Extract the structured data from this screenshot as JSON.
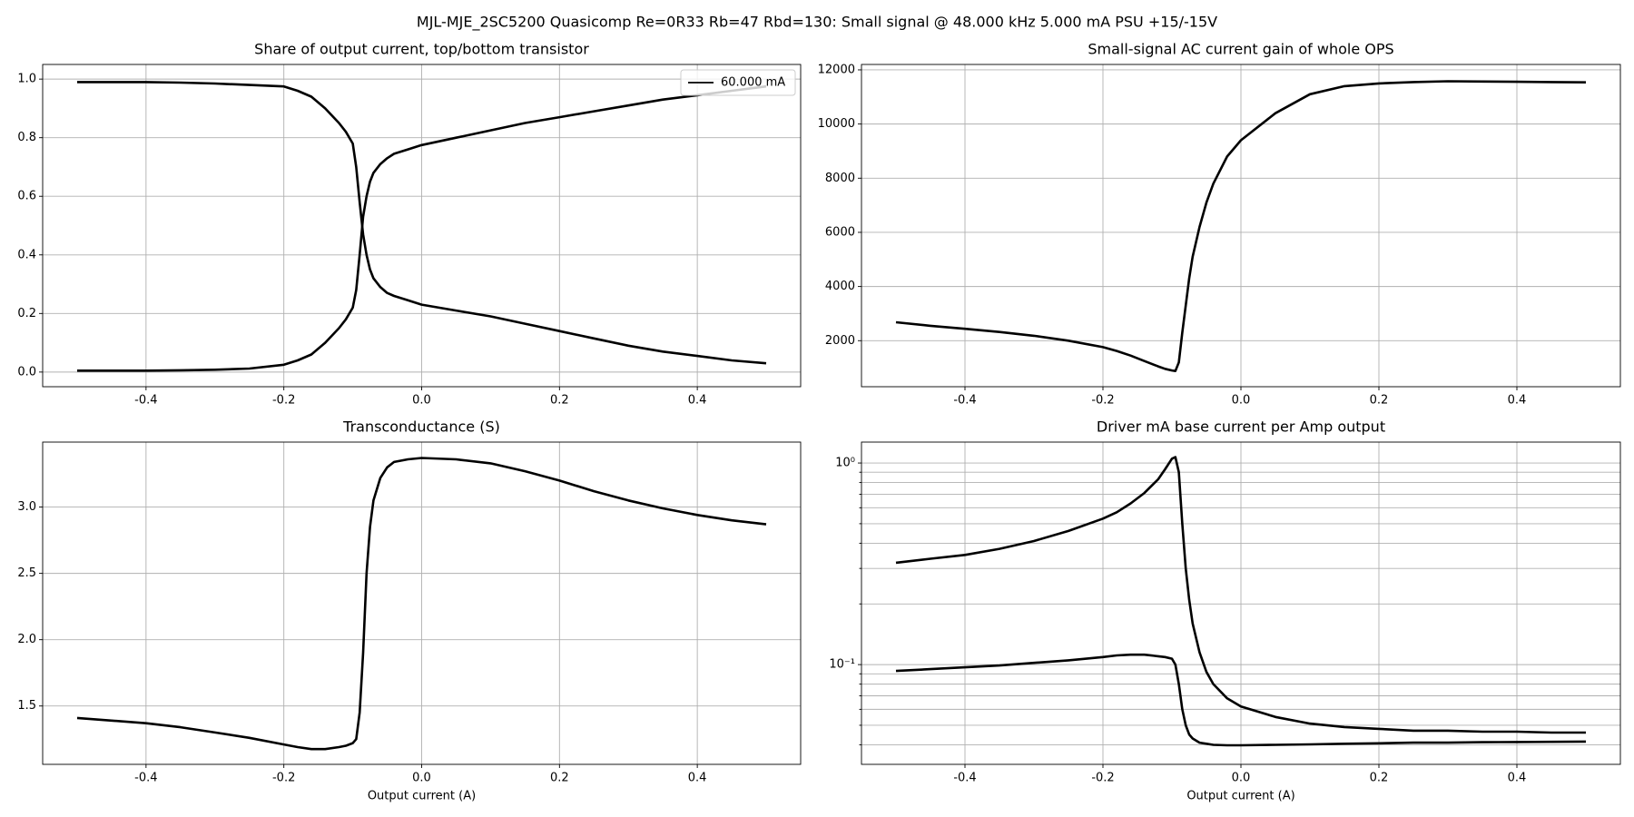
{
  "title": "MJL-MJE_2SC5200 Quasicomp Re=0R33 Rb=47 Rbd=130: Small signal @ 48.000 kHz 5.000 mA PSU +15/-15V",
  "chart_data": [
    {
      "type": "line",
      "title": "Share of output current, top/bottom transistor",
      "x": [
        -0.5,
        -0.45,
        -0.4,
        -0.35,
        -0.3,
        -0.25,
        -0.2,
        -0.18,
        -0.16,
        -0.14,
        -0.12,
        -0.11,
        -0.1,
        -0.095,
        -0.09,
        -0.085,
        -0.08,
        -0.075,
        -0.07,
        -0.06,
        -0.05,
        -0.04,
        -0.02,
        0,
        0.05,
        0.1,
        0.15,
        0.2,
        0.25,
        0.3,
        0.35,
        0.4,
        0.45,
        0.5
      ],
      "series": [
        {
          "name": "60.000 mA",
          "color": "#000000",
          "values": [
            0.99,
            0.99,
            0.99,
            0.988,
            0.985,
            0.98,
            0.975,
            0.96,
            0.94,
            0.9,
            0.85,
            0.82,
            0.78,
            0.7,
            0.58,
            0.47,
            0.4,
            0.35,
            0.32,
            0.29,
            0.27,
            0.26,
            0.245,
            0.23,
            0.21,
            0.19,
            0.165,
            0.14,
            0.115,
            0.09,
            0.07,
            0.055,
            0.04,
            0.03
          ]
        },
        {
          "color": "#000000",
          "values": [
            0.005,
            0.005,
            0.005,
            0.006,
            0.008,
            0.012,
            0.025,
            0.04,
            0.06,
            0.1,
            0.15,
            0.18,
            0.22,
            0.28,
            0.4,
            0.53,
            0.6,
            0.65,
            0.68,
            0.71,
            0.73,
            0.745,
            0.76,
            0.775,
            0.8,
            0.825,
            0.85,
            0.87,
            0.89,
            0.91,
            0.93,
            0.945,
            0.96,
            0.975
          ]
        }
      ],
      "xlim": [
        -0.55,
        0.55
      ],
      "xticks": [
        -0.4,
        -0.2,
        {
          "value": 0,
          "label": "0.0"
        },
        0.2,
        0.4
      ],
      "ylim": [
        -0.05,
        1.05
      ],
      "yticks": [
        {
          "value": 0,
          "label": "0.0"
        },
        0.2,
        0.4,
        0.6,
        0.8,
        {
          "value": 1,
          "label": "1.0"
        }
      ],
      "grid": true,
      "legend": "upper right"
    },
    {
      "type": "line",
      "title": "Small-signal AC current gain of whole OPS",
      "x": [
        -0.5,
        -0.45,
        -0.4,
        -0.35,
        -0.3,
        -0.25,
        -0.2,
        -0.18,
        -0.16,
        -0.14,
        -0.12,
        -0.11,
        -0.1,
        -0.095,
        -0.09,
        -0.085,
        -0.08,
        -0.075,
        -0.07,
        -0.06,
        -0.05,
        -0.04,
        -0.02,
        0,
        0.05,
        0.1,
        0.15,
        0.2,
        0.25,
        0.3,
        0.35,
        0.4,
        0.45,
        0.5
      ],
      "series": [
        {
          "color": "#000000",
          "values": [
            2680,
            2550,
            2440,
            2320,
            2180,
            2000,
            1760,
            1620,
            1450,
            1250,
            1050,
            960,
            900,
            880,
            1200,
            2300,
            3300,
            4300,
            5100,
            6200,
            7100,
            7800,
            8800,
            9400,
            10400,
            11100,
            11400,
            11500,
            11550,
            11580,
            11570,
            11560,
            11550,
            11540
          ]
        }
      ],
      "xlim": [
        -0.55,
        0.55
      ],
      "xticks": [
        -0.4,
        -0.2,
        {
          "value": 0,
          "label": "0.0"
        },
        0.2,
        0.4
      ],
      "ylim": [
        300,
        12200
      ],
      "yticks": [
        2000,
        4000,
        6000,
        8000,
        10000,
        12000
      ],
      "grid": true
    },
    {
      "type": "line",
      "title": "Transconductance (S)",
      "xlabel": "Output current (A)",
      "x": [
        -0.5,
        -0.45,
        -0.4,
        -0.35,
        -0.3,
        -0.25,
        -0.2,
        -0.18,
        -0.16,
        -0.14,
        -0.12,
        -0.11,
        -0.1,
        -0.095,
        -0.09,
        -0.085,
        -0.08,
        -0.075,
        -0.07,
        -0.06,
        -0.05,
        -0.04,
        -0.02,
        0,
        0.05,
        0.1,
        0.15,
        0.2,
        0.25,
        0.3,
        0.35,
        0.4,
        0.45,
        0.5
      ],
      "series": [
        {
          "color": "#000000",
          "values": [
            1.41,
            1.39,
            1.37,
            1.34,
            1.3,
            1.26,
            1.21,
            1.19,
            1.175,
            1.175,
            1.19,
            1.2,
            1.22,
            1.25,
            1.45,
            1.9,
            2.5,
            2.85,
            3.05,
            3.22,
            3.3,
            3.34,
            3.36,
            3.37,
            3.36,
            3.33,
            3.27,
            3.2,
            3.12,
            3.05,
            2.99,
            2.94,
            2.9,
            2.87
          ]
        }
      ],
      "xlim": [
        -0.55,
        0.55
      ],
      "xticks": [
        -0.4,
        -0.2,
        {
          "value": 0,
          "label": "0.0"
        },
        0.2,
        0.4
      ],
      "ylim": [
        1.06,
        3.49
      ],
      "yticks": [
        1.5,
        {
          "value": 2,
          "label": "2.0"
        },
        2.5,
        {
          "value": 3,
          "label": "3.0"
        }
      ],
      "grid": true
    },
    {
      "type": "line",
      "title": "Driver mA base current per Amp output",
      "xlabel": "Output current (A)",
      "yscale": "log",
      "x": [
        -0.5,
        -0.45,
        -0.4,
        -0.35,
        -0.3,
        -0.25,
        -0.2,
        -0.18,
        -0.16,
        -0.14,
        -0.12,
        -0.11,
        -0.1,
        -0.095,
        -0.09,
        -0.085,
        -0.08,
        -0.075,
        -0.07,
        -0.06,
        -0.05,
        -0.04,
        -0.02,
        0,
        0.05,
        0.1,
        0.15,
        0.2,
        0.25,
        0.3,
        0.35,
        0.4,
        0.45,
        0.5
      ],
      "series": [
        {
          "color": "#000000",
          "values": [
            0.32,
            0.335,
            0.35,
            0.375,
            0.41,
            0.46,
            0.53,
            0.57,
            0.63,
            0.71,
            0.83,
            0.93,
            1.05,
            1.07,
            0.9,
            0.5,
            0.3,
            0.21,
            0.16,
            0.115,
            0.092,
            0.08,
            0.068,
            0.062,
            0.055,
            0.051,
            0.049,
            0.048,
            0.047,
            0.047,
            0.0465,
            0.0465,
            0.046,
            0.046
          ]
        },
        {
          "color": "#000000",
          "values": [
            0.093,
            0.095,
            0.097,
            0.099,
            0.102,
            0.105,
            0.109,
            0.111,
            0.112,
            0.112,
            0.11,
            0.109,
            0.107,
            0.1,
            0.08,
            0.06,
            0.05,
            0.045,
            0.043,
            0.041,
            0.0405,
            0.04,
            0.0398,
            0.0398,
            0.04,
            0.0402,
            0.0405,
            0.0407,
            0.041,
            0.041,
            0.0412,
            0.0413,
            0.0414,
            0.0415
          ]
        }
      ],
      "xlim": [
        -0.55,
        0.55
      ],
      "xticks": [
        -0.4,
        -0.2,
        {
          "value": 0,
          "label": "0.0"
        },
        0.2,
        0.4
      ],
      "ylim": [
        0.032,
        1.27
      ],
      "yticks": [
        {
          "value": 0.1,
          "label": "10⁻¹"
        },
        {
          "value": 1,
          "label": "10⁰"
        }
      ],
      "yminorticks": [
        0.04,
        0.05,
        0.06,
        0.07,
        0.08,
        0.09,
        0.2,
        0.3,
        0.4,
        0.5,
        0.6,
        0.7,
        0.8,
        0.9
      ],
      "grid": true
    }
  ]
}
